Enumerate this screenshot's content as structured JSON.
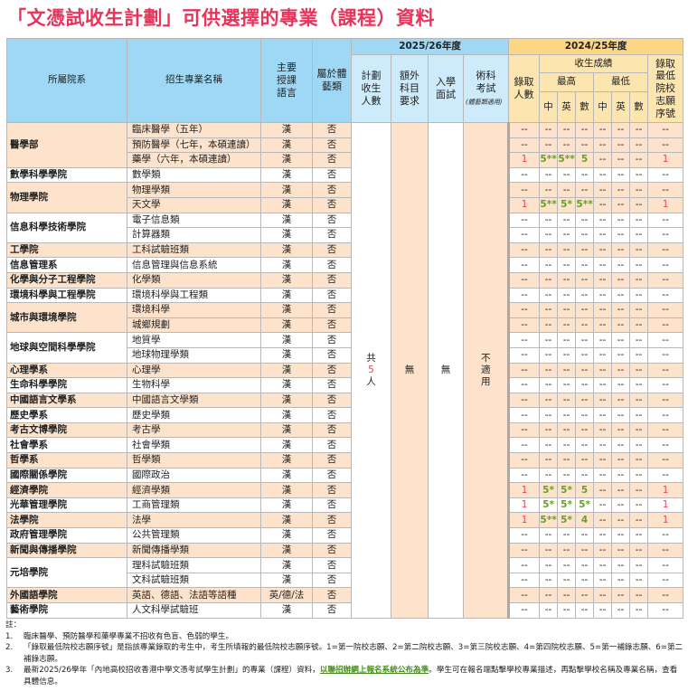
{
  "title": "「文憑試收生計劃」可供選擇的專業（課程）資料",
  "header": {
    "faculty": "所屬院系",
    "major": "招生專業名稱",
    "language": "主要授課語言",
    "arts": "屬於體藝類",
    "year_current": "2025/26年度",
    "plan": "計劃收生人數",
    "extra": "額外科目要求",
    "interview": "入學面試",
    "skill_test": "術科考試",
    "skill_test_note": "(體藝類適用)",
    "year_prev": "2024/25年度",
    "admitted": "錄取人數",
    "scores": "收生成績",
    "highest": "最高",
    "lowest": "最低",
    "chi": "中",
    "eng": "英",
    "math": "數",
    "lowest_choice": "錄取最低院校志願序號"
  },
  "shared": {
    "plan_prefix": "共",
    "plan_number": "5",
    "plan_suffix": "人",
    "extra": "無",
    "interview": "無",
    "skill_test": "不適用"
  },
  "groups": [
    {
      "faculty": "醫學部",
      "majors": [
        {
          "name": "臨床醫學（五年）",
          "lang": "漢",
          "arts": "否",
          "scores": [
            "--",
            "--",
            "--",
            "--",
            "--",
            "--",
            "--",
            "--"
          ]
        },
        {
          "name": "預防醫學（七年，本碩連讀）",
          "lang": "漢",
          "arts": "否",
          "scores": [
            "--",
            "--",
            "--",
            "--",
            "--",
            "--",
            "--",
            "--"
          ]
        },
        {
          "name": "藥學（六年，本碩連讀）",
          "lang": "漢",
          "arts": "否",
          "scores": [
            "1",
            "5**",
            "5**",
            "5",
            "--",
            "--",
            "--",
            "1"
          ]
        }
      ]
    },
    {
      "faculty": "數學科學學院",
      "majors": [
        {
          "name": "數學類",
          "lang": "漢",
          "arts": "否",
          "scores": [
            "--",
            "--",
            "--",
            "--",
            "--",
            "--",
            "--",
            "--"
          ]
        }
      ]
    },
    {
      "faculty": "物理學院",
      "majors": [
        {
          "name": "物理學類",
          "lang": "漢",
          "arts": "否",
          "scores": [
            "--",
            "--",
            "--",
            "--",
            "--",
            "--",
            "--",
            "--"
          ]
        },
        {
          "name": "天文學",
          "lang": "漢",
          "arts": "否",
          "scores": [
            "1",
            "5**",
            "5*",
            "5**",
            "--",
            "--",
            "--",
            "1"
          ]
        }
      ]
    },
    {
      "faculty": "信息科學技術學院",
      "majors": [
        {
          "name": "電子信息類",
          "lang": "漢",
          "arts": "否",
          "scores": [
            "--",
            "--",
            "--",
            "--",
            "--",
            "--",
            "--",
            "--"
          ]
        },
        {
          "name": "計算器類",
          "lang": "漢",
          "arts": "否",
          "scores": [
            "--",
            "--",
            "--",
            "--",
            "--",
            "--",
            "--",
            "--"
          ]
        }
      ]
    },
    {
      "faculty": "工學院",
      "majors": [
        {
          "name": "工科試驗班類",
          "lang": "漢",
          "arts": "否",
          "scores": [
            "--",
            "--",
            "--",
            "--",
            "--",
            "--",
            "--",
            "--"
          ]
        }
      ]
    },
    {
      "faculty": "信息管理系",
      "majors": [
        {
          "name": "信息管理與信息系統",
          "lang": "漢",
          "arts": "否",
          "scores": [
            "--",
            "--",
            "--",
            "--",
            "--",
            "--",
            "--",
            "--"
          ]
        }
      ]
    },
    {
      "faculty": "化學與分子工程學院",
      "majors": [
        {
          "name": "化學類",
          "lang": "漢",
          "arts": "否",
          "scores": [
            "--",
            "--",
            "--",
            "--",
            "--",
            "--",
            "--",
            "--"
          ]
        }
      ]
    },
    {
      "faculty": "環境科學與工程學院",
      "majors": [
        {
          "name": "環境科學與工程類",
          "lang": "漢",
          "arts": "否",
          "scores": [
            "--",
            "--",
            "--",
            "--",
            "--",
            "--",
            "--",
            "--"
          ]
        }
      ]
    },
    {
      "faculty": "城市與環境學院",
      "majors": [
        {
          "name": "環境科學",
          "lang": "漢",
          "arts": "否",
          "scores": [
            "--",
            "--",
            "--",
            "--",
            "--",
            "--",
            "--",
            "--"
          ]
        },
        {
          "name": "城鄉規劃",
          "lang": "漢",
          "arts": "否",
          "scores": [
            "--",
            "--",
            "--",
            "--",
            "--",
            "--",
            "--",
            "--"
          ]
        }
      ]
    },
    {
      "faculty": "地球與空間科學學院",
      "majors": [
        {
          "name": "地質學",
          "lang": "漢",
          "arts": "否",
          "scores": [
            "--",
            "--",
            "--",
            "--",
            "--",
            "--",
            "--",
            "--"
          ]
        },
        {
          "name": "地球物理學類",
          "lang": "漢",
          "arts": "否",
          "scores": [
            "--",
            "--",
            "--",
            "--",
            "--",
            "--",
            "--",
            "--"
          ]
        }
      ]
    },
    {
      "faculty": "心理學系",
      "majors": [
        {
          "name": "心理學",
          "lang": "漢",
          "arts": "否",
          "scores": [
            "--",
            "--",
            "--",
            "--",
            "--",
            "--",
            "--",
            "--"
          ]
        }
      ]
    },
    {
      "faculty": "生命科學學院",
      "majors": [
        {
          "name": "生物科學",
          "lang": "漢",
          "arts": "否",
          "scores": [
            "--",
            "--",
            "--",
            "--",
            "--",
            "--",
            "--",
            "--"
          ]
        }
      ]
    },
    {
      "faculty": "中國語言文學系",
      "majors": [
        {
          "name": "中國語言文學類",
          "lang": "漢",
          "arts": "否",
          "scores": [
            "--",
            "--",
            "--",
            "--",
            "--",
            "--",
            "--",
            "--"
          ]
        }
      ]
    },
    {
      "faculty": "歷史學系",
      "majors": [
        {
          "name": "歷史學類",
          "lang": "漢",
          "arts": "否",
          "scores": [
            "--",
            "--",
            "--",
            "--",
            "--",
            "--",
            "--",
            "--"
          ]
        }
      ]
    },
    {
      "faculty": "考古文博學院",
      "majors": [
        {
          "name": "考古學",
          "lang": "漢",
          "arts": "否",
          "scores": [
            "--",
            "--",
            "--",
            "--",
            "--",
            "--",
            "--",
            "--"
          ]
        }
      ]
    },
    {
      "faculty": "社會學系",
      "majors": [
        {
          "name": "社會學類",
          "lang": "漢",
          "arts": "否",
          "scores": [
            "--",
            "--",
            "--",
            "--",
            "--",
            "--",
            "--",
            "--"
          ]
        }
      ]
    },
    {
      "faculty": "哲學系",
      "majors": [
        {
          "name": "哲學類",
          "lang": "漢",
          "arts": "否",
          "scores": [
            "--",
            "--",
            "--",
            "--",
            "--",
            "--",
            "--",
            "--"
          ]
        }
      ]
    },
    {
      "faculty": "國際關係學院",
      "majors": [
        {
          "name": "國際政治",
          "lang": "漢",
          "arts": "否",
          "scores": [
            "--",
            "--",
            "--",
            "--",
            "--",
            "--",
            "--",
            "--"
          ]
        }
      ]
    },
    {
      "faculty": "經濟學院",
      "majors": [
        {
          "name": "經濟學類",
          "lang": "漢",
          "arts": "否",
          "scores": [
            "1",
            "5*",
            "5*",
            "5",
            "--",
            "--",
            "--",
            "1"
          ]
        }
      ]
    },
    {
      "faculty": "光華管理學院",
      "majors": [
        {
          "name": "工商管理類",
          "lang": "漢",
          "arts": "否",
          "scores": [
            "1",
            "5*",
            "5*",
            "5*",
            "--",
            "--",
            "--",
            "1"
          ]
        }
      ]
    },
    {
      "faculty": "法學院",
      "majors": [
        {
          "name": "法學",
          "lang": "漢",
          "arts": "否",
          "scores": [
            "1",
            "5**",
            "5*",
            "4",
            "--",
            "--",
            "--",
            "1"
          ]
        }
      ]
    },
    {
      "faculty": "政府管理學院",
      "majors": [
        {
          "name": "公共管理類",
          "lang": "漢",
          "arts": "否",
          "scores": [
            "--",
            "--",
            "--",
            "--",
            "--",
            "--",
            "--",
            "--"
          ]
        }
      ]
    },
    {
      "faculty": "新聞與傳播學院",
      "majors": [
        {
          "name": "新聞傳播學類",
          "lang": "漢",
          "arts": "否",
          "scores": [
            "--",
            "--",
            "--",
            "--",
            "--",
            "--",
            "--",
            "--"
          ]
        }
      ]
    },
    {
      "faculty": "元培學院",
      "majors": [
        {
          "name": "理科試驗班類",
          "lang": "漢",
          "arts": "否",
          "scores": [
            "--",
            "--",
            "--",
            "--",
            "--",
            "--",
            "--",
            "--"
          ]
        },
        {
          "name": "文科試驗班類",
          "lang": "漢",
          "arts": "否",
          "scores": [
            "--",
            "--",
            "--",
            "--",
            "--",
            "--",
            "--",
            "--"
          ]
        }
      ]
    },
    {
      "faculty": "外國語學院",
      "majors": [
        {
          "name": "英語、德語、法語等語種",
          "lang": "英/德/法",
          "arts": "否",
          "scores": [
            "--",
            "--",
            "--",
            "--",
            "--",
            "--",
            "--",
            "--"
          ]
        }
      ]
    },
    {
      "faculty": "藝術學院",
      "majors": [
        {
          "name": "人文科學試驗班",
          "lang": "漢",
          "arts": "否",
          "scores": [
            "--",
            "--",
            "--",
            "--",
            "--",
            "--",
            "--",
            "--"
          ]
        }
      ]
    }
  ],
  "notes": {
    "label": "註：",
    "items": [
      {
        "num": "1.",
        "text": "臨床醫學、預防醫學和藥學專業不招收有色盲、色弱的學生。"
      },
      {
        "num": "2.",
        "text": "「錄取最低院校志願序號」是指該專業錄取的考生中，考生所填報的最低院校志願序號。1=第一院校志願、2=第二院校志願、3=第三院校志願、4=第四院校志願、5=第一補錄志願、6=第二補錄志願。"
      },
      {
        "num": "3.",
        "text_before": "最新2025/26學年「內地高校招收香港中學文憑考試學生計劃」的專業（課程）資料，",
        "link": "以聯招辦網上報名系統公布為準",
        "text_after": "。學生可在報名端點擊學校專業描述，再點擊學校名稱及專業名稱，查看具體信息。"
      }
    ]
  },
  "colors": {
    "title": "#e8345a",
    "header_blue": "#9fd8f4",
    "header_orange": "#fbd685",
    "row_peach": "#fde3cc",
    "highlight_red": "#e8445a",
    "highlight_green": "#6a9e2a"
  }
}
